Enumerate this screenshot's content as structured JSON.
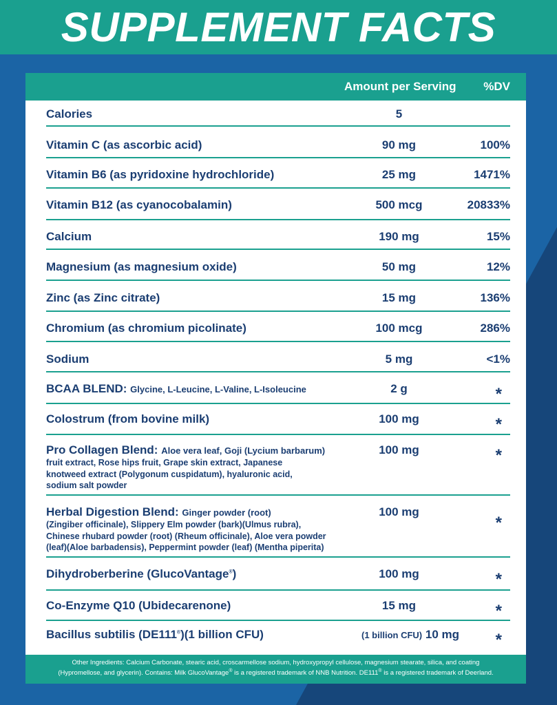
{
  "title": "SUPPLEMENT FACTS",
  "columns": {
    "amount": "Amount per Serving",
    "dv": "%DV"
  },
  "rows": [
    {
      "name": "Calories",
      "amount": "5",
      "dv": ""
    },
    {
      "name": "Vitamin C (as ascorbic acid)",
      "amount": "90 mg",
      "dv": "100%"
    },
    {
      "name": "Vitamin B6 (as pyridoxine hydrochloride)",
      "amount": "25 mg",
      "dv": "1471%"
    },
    {
      "name": "Vitamin B12 (as cyanocobalamin)",
      "amount": "500 mcg",
      "dv": "20833%"
    },
    {
      "name": "Calcium",
      "amount": "190 mg",
      "dv": "15%"
    },
    {
      "name": "Magnesium (as magnesium oxide)",
      "amount": "50 mg",
      "dv": "12%"
    },
    {
      "name": "Zinc (as Zinc citrate)",
      "amount": "15 mg",
      "dv": "136%"
    },
    {
      "name": "Chromium (as chromium picolinate)",
      "amount": "100 mcg",
      "dv": "286%"
    },
    {
      "name": "Sodium",
      "amount": "5 mg",
      "dv": "<1%"
    },
    {
      "name": "BCAA BLEND:",
      "sub": "Glycine, L-Leucine, L-Valine, L-Isoleucine",
      "amount": "2 g",
      "dv": "*"
    },
    {
      "name": "Colostrum (from bovine milk)",
      "amount": "100 mg",
      "dv": "*"
    },
    {
      "name": "Pro Collagen Blend:",
      "sub": "Aloe vera leaf, Goji (Lycium barbarum)",
      "desc": [
        "fruit extract, Rose hips fruit, Grape skin extract, Japanese",
        "knotweed extract (Polygonum cuspidatum), hyaluronic acid,",
        "sodium salt powder"
      ],
      "amount": "100 mg",
      "dv": "*"
    },
    {
      "name": "Herbal Digestion Blend:",
      "sub": "Ginger powder (root)",
      "desc": [
        "(Zingiber officinale), Slippery Elm powder (bark)(Ulmus rubra),",
        "Chinese rhubard powder (root) (Rheum officinale), Aloe vera powder",
        "(leaf)(Aloe barbadensis), Peppermint powder (leaf) (Mentha piperita)"
      ],
      "amount": "100 mg",
      "dv": "*"
    },
    {
      "name": "Dihydroberberine (GlucoVantage",
      "reg": "®",
      "name_end": ")",
      "amount": "100 mg",
      "dv": "*"
    },
    {
      "name": "Co-Enzyme Q10 (Ubidecarenone)",
      "amount": "15 mg",
      "dv": "*"
    },
    {
      "name": "Bacillus subtilis (DE111",
      "reg": "®",
      "name_end": ")(1 billion CFU)",
      "amount_note": "(1 billion CFU)",
      "amount": "10 mg",
      "dv": "*"
    }
  ],
  "footer": {
    "line1": "Other Ingredients: Calcium Carbonate, stearic acid, croscarmellose sodium, hydroxypropyl cellulose, magnesium stearate, silica, and coating",
    "line2a": "(Hypromellose, and glycerin). Contains: Milk GlucoVantage",
    "reg1": "®",
    "line2b": " is a registered trademark of NNB Nutrition. DE111",
    "reg2": "®",
    "line2c": " is a registered trademark of Deerland."
  },
  "colors": {
    "teal": "#1aa08f",
    "blue": "#1b64a5",
    "navy": "#16467a",
    "text": "#1b3e72"
  }
}
